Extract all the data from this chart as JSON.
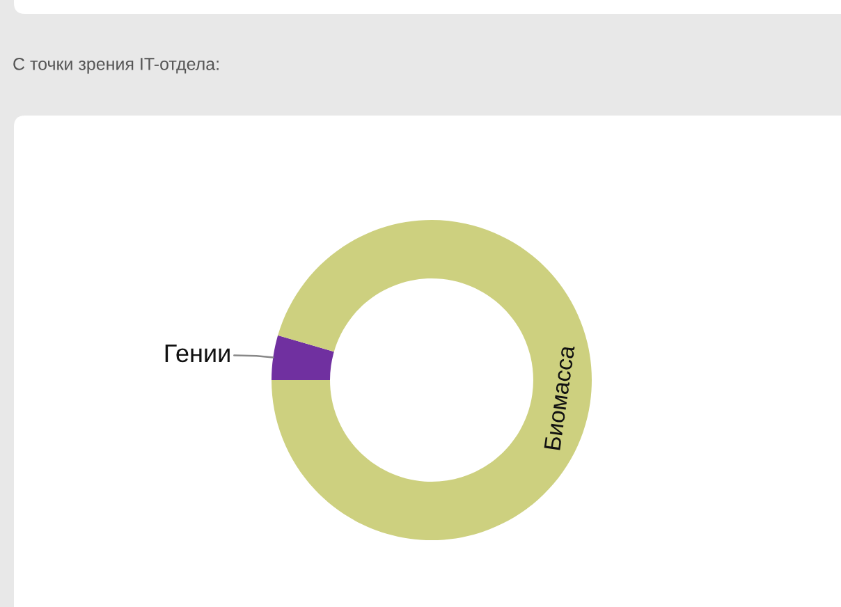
{
  "chart_data": {
    "type": "donut",
    "title": "С точки зрения IT-отдела:",
    "categories": [
      "Гении",
      "Биомасса"
    ],
    "values": [
      4.5,
      95.5
    ],
    "colors": [
      "#7030a0",
      "#cdd07f"
    ]
  }
}
